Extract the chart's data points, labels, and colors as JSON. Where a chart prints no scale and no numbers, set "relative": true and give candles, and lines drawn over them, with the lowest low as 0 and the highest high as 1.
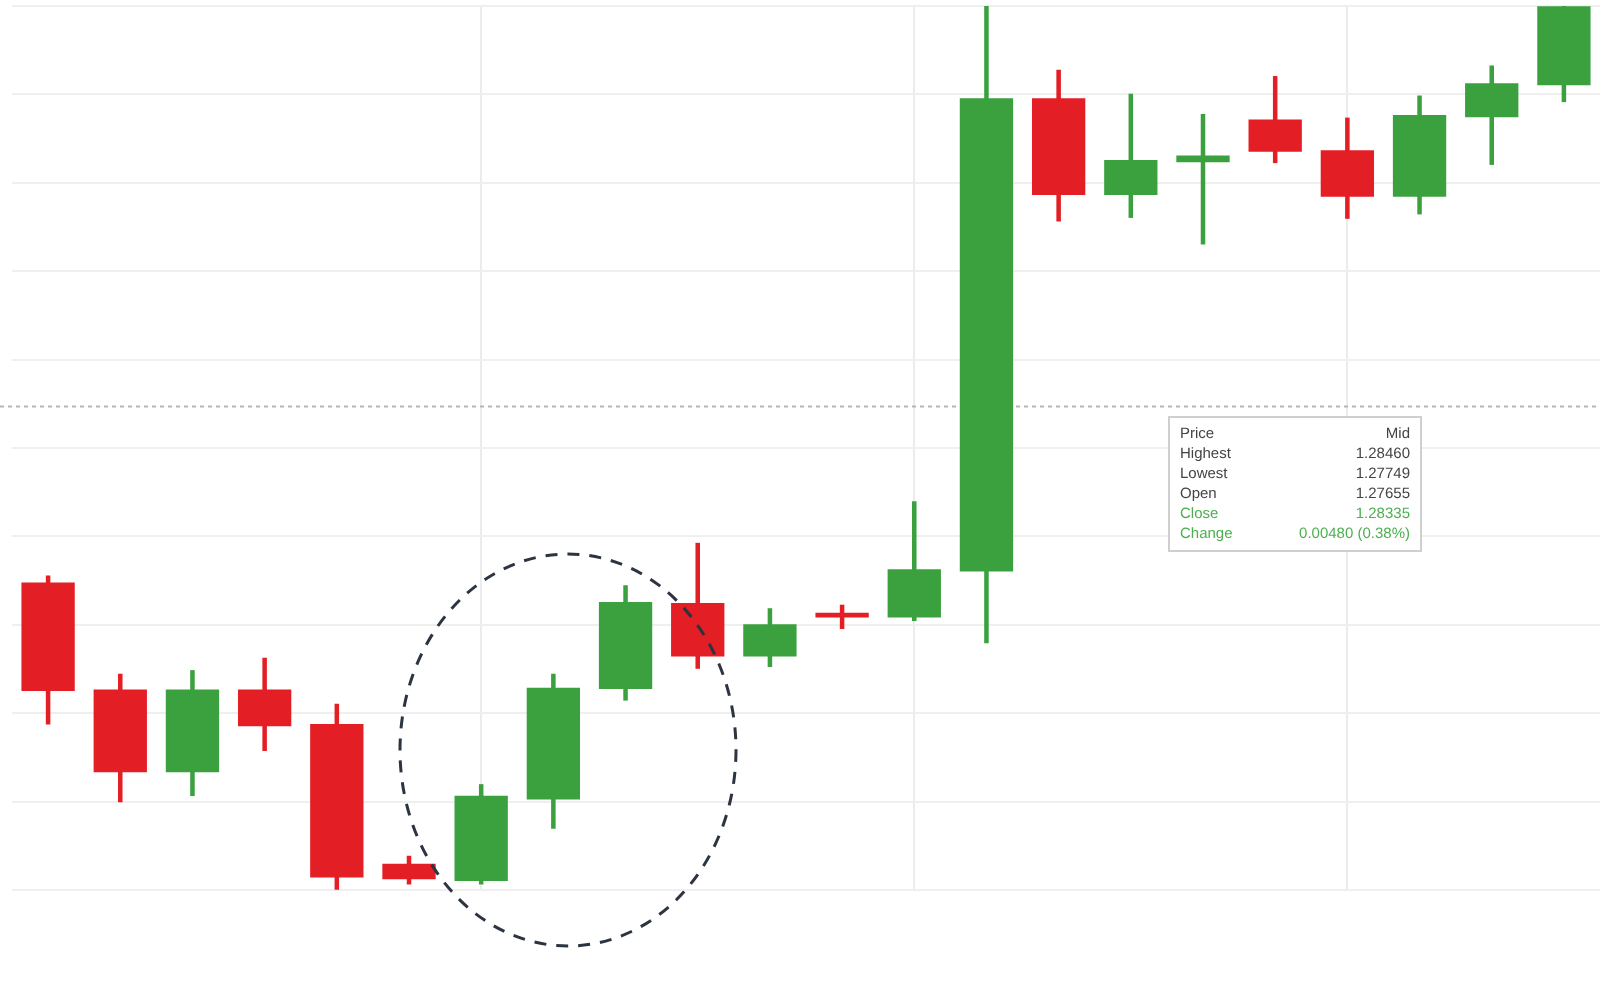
{
  "chart_data": {
    "type": "candlestick",
    "relative": true,
    "categories": [
      null,
      null,
      null,
      null,
      null,
      null,
      null,
      null,
      null,
      null,
      null,
      null,
      null,
      null,
      null,
      null,
      null,
      null,
      null,
      null,
      null,
      null
    ],
    "ohlc": [
      [
        0.347,
        0.355,
        0.188,
        0.226
      ],
      [
        0.226,
        0.244,
        0.1,
        0.134
      ],
      [
        0.134,
        0.248,
        0.107,
        0.226
      ],
      [
        0.226,
        0.262,
        0.158,
        0.186
      ],
      [
        0.187,
        0.21,
        0.0,
        0.015
      ],
      [
        0.029,
        0.038,
        0.007,
        0.013
      ],
      [
        0.011,
        0.119,
        0.007,
        0.106
      ],
      [
        0.103,
        0.244,
        0.07,
        0.228
      ],
      [
        0.228,
        0.344,
        0.215,
        0.325
      ],
      [
        0.324,
        0.392,
        0.251,
        0.265
      ],
      [
        0.265,
        0.318,
        0.253,
        0.3
      ],
      [
        0.313,
        0.322,
        0.296,
        0.309
      ],
      [
        0.309,
        0.439,
        0.305,
        0.362
      ],
      [
        0.361,
        1.0,
        0.28,
        0.895
      ],
      [
        0.895,
        0.927,
        0.757,
        0.787
      ],
      [
        0.787,
        0.9,
        0.761,
        0.825
      ],
      [
        0.824,
        0.877,
        0.731,
        0.83
      ],
      [
        0.871,
        0.92,
        0.823,
        0.836
      ],
      [
        0.836,
        0.873,
        0.76,
        0.785
      ],
      [
        0.785,
        0.898,
        0.765,
        0.876
      ],
      [
        0.875,
        0.932,
        0.821,
        0.912
      ],
      [
        0.911,
        1.0,
        0.892,
        0.999
      ]
    ],
    "colors": [
      "#e31e24",
      "#e31e24",
      "#3aa13e",
      "#e31e24",
      "#e31e24",
      "#e31e24",
      "#3aa13e",
      "#3aa13e",
      "#3aa13e",
      "#e31e24",
      "#3aa13e",
      "#e31e24",
      "#3aa13e",
      "#3aa13e",
      "#e31e24",
      "#3aa13e",
      "#3aa13e",
      "#e31e24",
      "#e31e24",
      "#3aa13e",
      "#3aa13e",
      "#3aa13e"
    ],
    "grid": true,
    "ref_lines": [
      {
        "axis": "y",
        "value": 0.547,
        "color": "#b5b5b5",
        "line_style": "dotted"
      }
    ],
    "annotations": [
      "Price",
      "Mid",
      "Highest",
      "1.28460",
      "Lowest",
      "1.27749",
      "Open",
      "1.27655",
      "Close",
      "1.28335",
      "Change",
      "0.00480 (0.38%)"
    ]
  }
}
